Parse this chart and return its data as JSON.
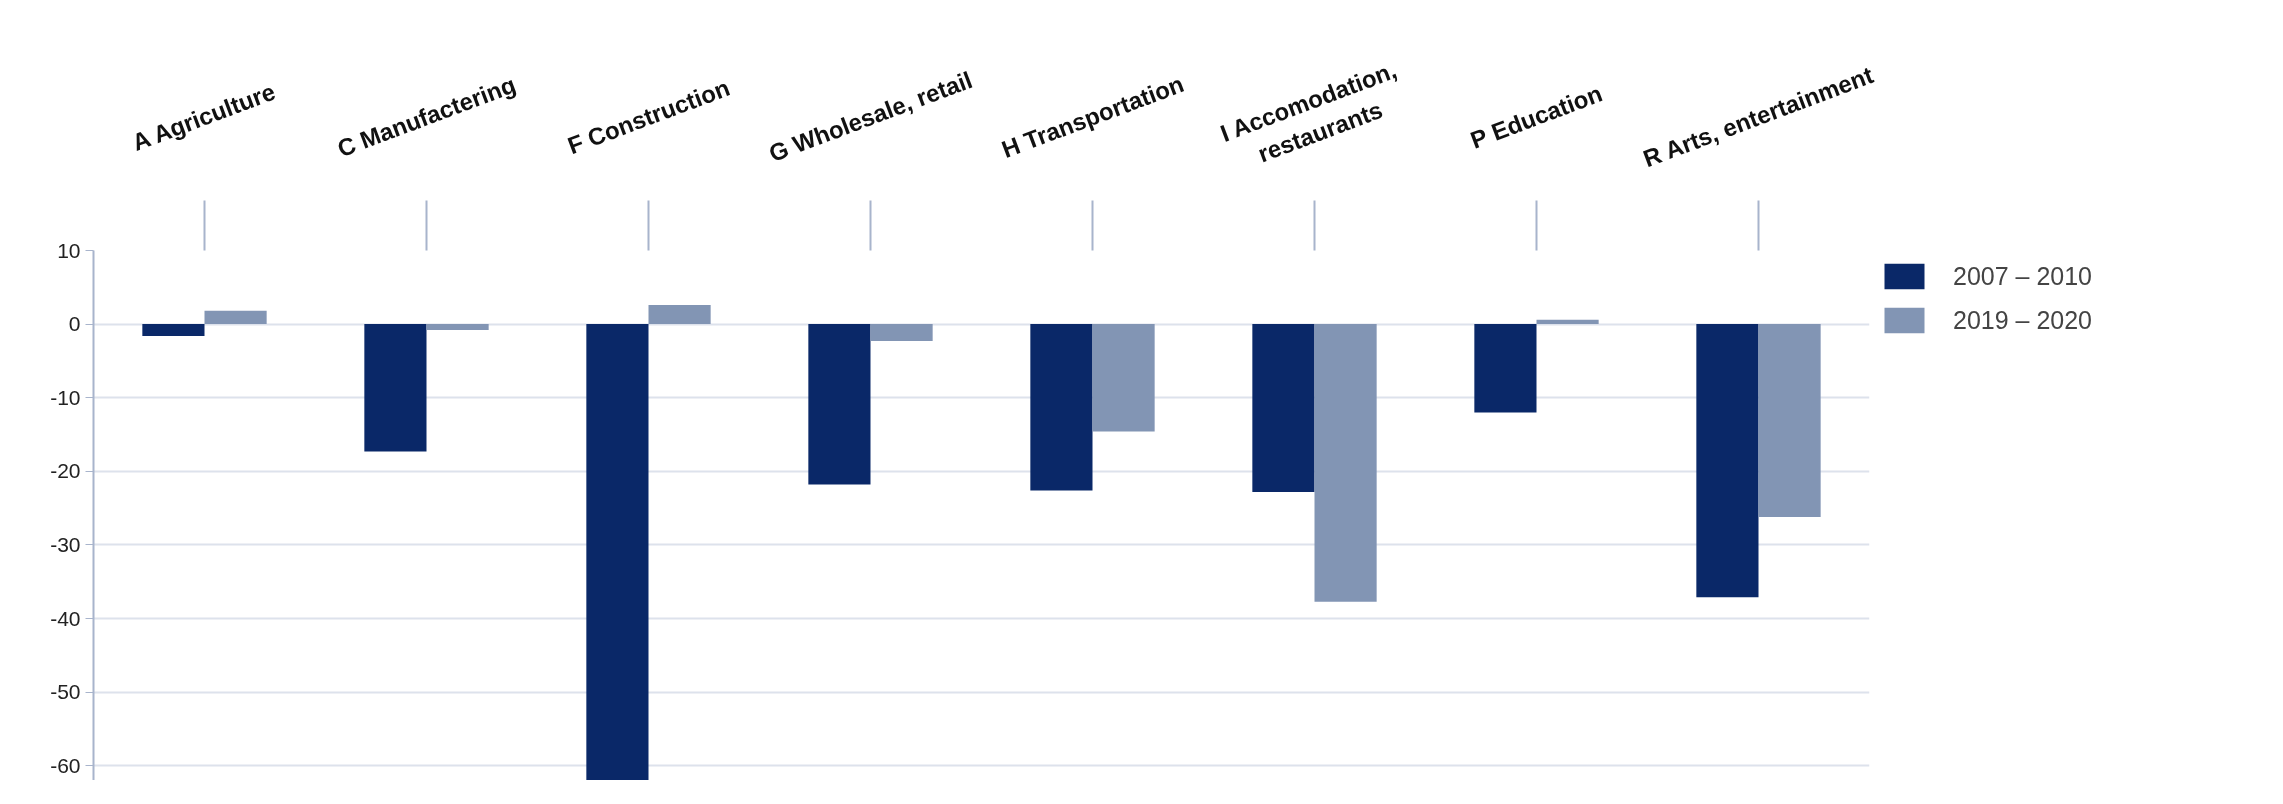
{
  "chart_data": {
    "type": "bar",
    "categories": [
      "A Agriculture",
      "C Manufactering",
      "F Construction",
      "G Wholesale, retail",
      "H Transportation",
      "I Accomodation,\nrestaurants",
      "P Education",
      "R Arts, entertainment"
    ],
    "series": [
      {
        "name": "2007 – 2010",
        "color": "#0a2868",
        "values": [
          -1.6,
          -17.3,
          -62,
          -21.8,
          -22.6,
          -22.8,
          -12.0,
          -37.1
        ]
      },
      {
        "name": "2019 – 2020",
        "color": "#8295b4",
        "values": [
          1.8,
          -0.8,
          2.6,
          -2.3,
          -14.6,
          -37.7,
          0.6,
          -26.2
        ]
      }
    ],
    "ylim": [
      -62,
      10
    ],
    "yticks": [
      -60,
      -50,
      -40,
      -30,
      -20,
      -10,
      0,
      10
    ],
    "grid": "y",
    "legend": "right"
  }
}
